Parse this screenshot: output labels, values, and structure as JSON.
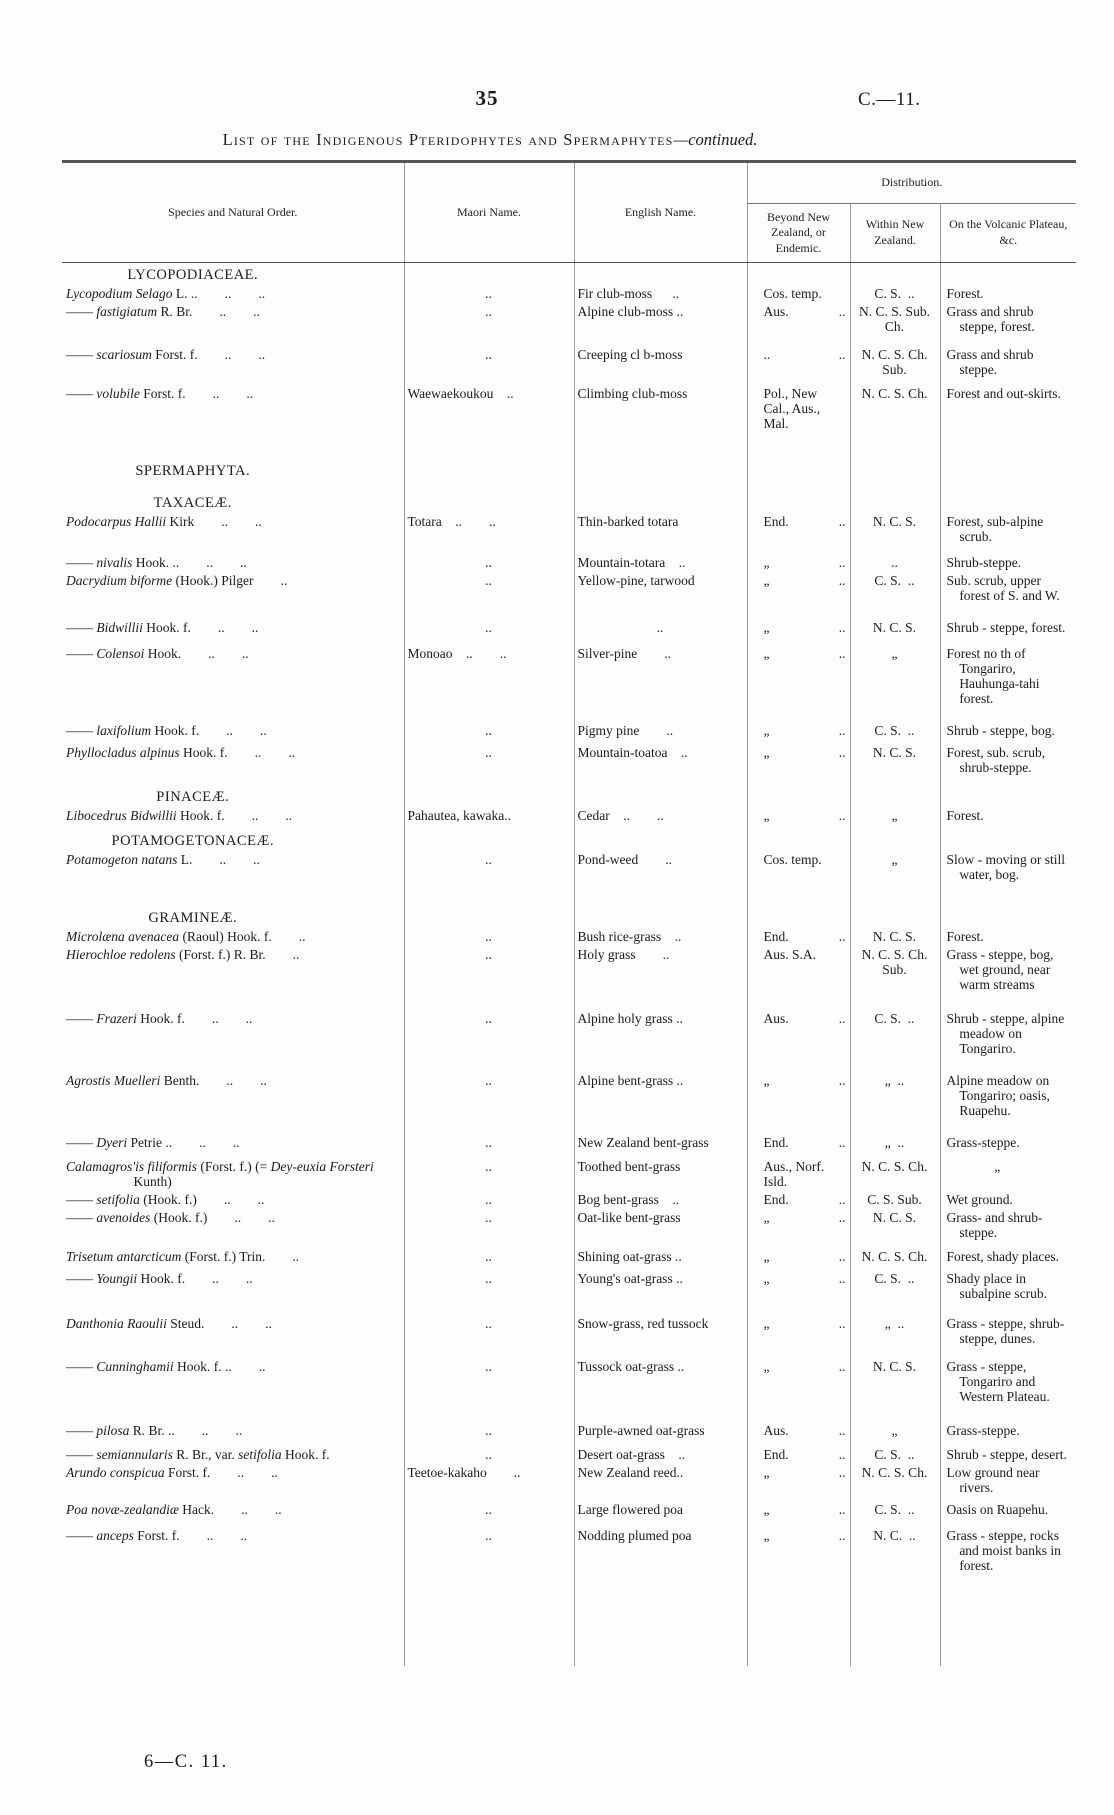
{
  "page": {
    "number": "35",
    "doc_ref": "C.—11.",
    "title_main": "List of the Indigenous Pteridophytes and Spermaphytes",
    "title_suffix": "—continued.",
    "footer": "6—C. 11."
  },
  "table": {
    "headers": {
      "species": "Species and Natural Order.",
      "maori": "Maori Name.",
      "english": "English Name.",
      "distribution": "Distribution.",
      "beyond": "Beyond New Zealand, or Endemic.",
      "within": "Within New Zealand.",
      "volcanic": "On the Volcanic Plateau, &c."
    },
    "rows": [
      {
        "type": "section",
        "label": "LYCOPODIACEAE.",
        "gap": 4
      },
      {
        "type": "sp",
        "seg": [
          {
            "t": "Lycopodium Selago",
            "i": 1
          },
          {
            "t": "L. ..",
            "i": 0
          }
        ],
        "lead": 2,
        "maori": "..",
        "english": "Fir club-moss  ..",
        "beyond": "Cos. temp.",
        "bdots": "",
        "within": "C. S. ..",
        "volcanic": "Forest."
      },
      {
        "type": "sp",
        "seg": [
          {
            "t": "——",
            "i": 0
          },
          {
            "t": "fastigiatum",
            "i": 1
          },
          {
            "t": "R. Br.",
            "i": 0
          }
        ],
        "lead": 2,
        "maori": "..",
        "english": "Alpine club-moss ..",
        "beyond": "Aus.",
        "bdots": "..",
        "within": "N. C. S. Sub. Ch.",
        "volcanic": "Grass and shrub steppe, forest."
      },
      {
        "type": "sp",
        "gap": 10,
        "seg": [
          {
            "t": "——",
            "i": 0
          },
          {
            "t": "scariosum",
            "i": 1
          },
          {
            "t": "Forst. f.",
            "i": 0
          }
        ],
        "lead": 2,
        "maori": "..",
        "english": "Creeping cl b-moss",
        "beyond": "..",
        "bdots": "..",
        "within": "N. C. S. Ch. Sub.",
        "volcanic": "Grass and shrub steppe."
      },
      {
        "type": "sp",
        "gap": 6,
        "seg": [
          {
            "t": "——",
            "i": 0
          },
          {
            "t": "volubile",
            "i": 1
          },
          {
            "t": "Forst. f.",
            "i": 0
          }
        ],
        "lead": 2,
        "maori": "Waewaekoukou ..",
        "english": "Climbing club-moss",
        "beyond": "Pol., New Cal., Aus., Mal.",
        "bdots": "",
        "within": "N. C. S. Ch.",
        "volcanic": "Forest and out-skirts."
      },
      {
        "type": "section",
        "label": "SPERMAPHYTA.",
        "gap": 30
      },
      {
        "type": "section",
        "label": "TAXACEÆ.",
        "gap": 14
      },
      {
        "type": "sp",
        "seg": [
          {
            "t": "Podocarpus Hallii",
            "i": 1
          },
          {
            "t": "Kirk",
            "i": 0
          }
        ],
        "lead": 2,
        "maori": "Totara ..  ..",
        "english": "Thin-barked totara",
        "beyond": "End.",
        "bdots": "..",
        "within": "N. C. S.",
        "volcanic": "Forest, sub-alpine scrub."
      },
      {
        "type": "sp",
        "gap": 8,
        "seg": [
          {
            "t": "——",
            "i": 0
          },
          {
            "t": "nivalis",
            "i": 1
          },
          {
            "t": "Hook. ..",
            "i": 0
          }
        ],
        "lead": 2,
        "maori": "..",
        "english": "Mountain-totara ..",
        "beyond": "„",
        "bdots": "..",
        "within": "..",
        "volcanic": "Shrub-steppe."
      },
      {
        "type": "sp",
        "seg": [
          {
            "t": "Dacrydium biforme",
            "i": 1
          },
          {
            "t": "(Hook.) Pilger",
            "i": 0
          }
        ],
        "lead": 1,
        "maori": "..",
        "english": "Yellow-pine, tarwood",
        "beyond": "„",
        "bdots": "..",
        "within": "C. S. ..",
        "volcanic": "Sub. scrub, upper forest of S. and W."
      },
      {
        "type": "sp",
        "gap": 14,
        "seg": [
          {
            "t": "——",
            "i": 0
          },
          {
            "t": "Bidwillii",
            "i": 1
          },
          {
            "t": "Hook. f.",
            "i": 0
          }
        ],
        "lead": 2,
        "maori": "..",
        "english": "..",
        "beyond": "„",
        "bdots": "..",
        "within": "N. C. S.",
        "volcanic": "Shrub - steppe, forest."
      },
      {
        "type": "sp",
        "gap": 8,
        "seg": [
          {
            "t": "——",
            "i": 0
          },
          {
            "t": "Colensoi",
            "i": 1
          },
          {
            "t": "Hook.",
            "i": 0
          }
        ],
        "lead": 2,
        "maori": "Monoao ..  ..",
        "english": "Silver-pine  ..",
        "beyond": "„",
        "bdots": "..",
        "within": "„",
        "volcanic": "Forest no th of Tongariro, Hauhunga-tahi forest."
      },
      {
        "type": "sp",
        "gap": 14,
        "seg": [
          {
            "t": "——",
            "i": 0
          },
          {
            "t": "laxifolium",
            "i": 1
          },
          {
            "t": "Hook. f.",
            "i": 0
          }
        ],
        "lead": 2,
        "maori": "..",
        "english": "Pigmy pine  ..",
        "beyond": "„",
        "bdots": "..",
        "within": "C. S. ..",
        "volcanic": "Shrub - steppe, bog."
      },
      {
        "type": "sp",
        "gap": 4,
        "seg": [
          {
            "t": "Phyllocladus alpinus",
            "i": 1
          },
          {
            "t": "Hook. f.",
            "i": 0
          }
        ],
        "lead": 2,
        "maori": "..",
        "english": "Mountain-toatoa ..",
        "beyond": "„",
        "bdots": "..",
        "within": "N. C. S.",
        "volcanic": "Forest, sub. scrub, shrub-steppe."
      },
      {
        "type": "section",
        "label": "PINACEÆ.",
        "gap": 12
      },
      {
        "type": "sp",
        "seg": [
          {
            "t": "Libocedrus Bidwillii",
            "i": 1
          },
          {
            "t": "Hook. f.",
            "i": 0
          }
        ],
        "lead": 2,
        "maori": "Pahautea, kawaka..",
        "english": "Cedar ..  ..",
        "beyond": "„",
        "bdots": "..",
        "within": "„",
        "volcanic": "Forest."
      },
      {
        "type": "section",
        "label": "POTAMOGETONACEÆ.",
        "gap": 8
      },
      {
        "type": "sp",
        "seg": [
          {
            "t": "Potamogeton natans",
            "i": 1
          },
          {
            "t": "L.",
            "i": 0
          }
        ],
        "lead": 2,
        "maori": "..",
        "english": "Pond-weed  ..",
        "beyond": "Cos. temp.",
        "bdots": "",
        "within": "„",
        "volcanic": "Slow - moving or still water, bog."
      },
      {
        "type": "section",
        "label": "GRAMINEÆ.",
        "gap": 26
      },
      {
        "type": "sp",
        "seg": [
          {
            "t": "Microlæna avenacea",
            "i": 1
          },
          {
            "t": "(Raoul) Hook. f.",
            "i": 0
          }
        ],
        "lead": 1,
        "maori": "..",
        "english": "Bush rice-grass ..",
        "beyond": "End.",
        "bdots": "..",
        "within": "N. C. S.",
        "volcanic": "Forest."
      },
      {
        "type": "sp",
        "seg": [
          {
            "t": "Hierochloe redolens",
            "i": 1
          },
          {
            "t": "(Forst. f.) R. Br.",
            "i": 0
          }
        ],
        "lead": 1,
        "maori": "..",
        "english": "Holy grass  ..",
        "beyond": "Aus. S.A.",
        "bdots": "",
        "within": "N. C. S. Ch. Sub.",
        "volcanic": "Grass - steppe, bog, wet ground, near warm streams"
      },
      {
        "type": "sp",
        "gap": 16,
        "seg": [
          {
            "t": "——",
            "i": 0
          },
          {
            "t": "Frazeri",
            "i": 1
          },
          {
            "t": "Hook. f.",
            "i": 0
          }
        ],
        "lead": 2,
        "maori": "..",
        "english": "Alpine holy grass ..",
        "beyond": "Aus.",
        "bdots": "..",
        "within": "C. S. ..",
        "volcanic": "Shrub - steppe, alpine meadow on Tongariro."
      },
      {
        "type": "sp",
        "gap": 14,
        "seg": [
          {
            "t": "Agrostis Muelleri",
            "i": 1
          },
          {
            "t": "Benth.",
            "i": 0
          }
        ],
        "lead": 2,
        "maori": "..",
        "english": "Alpine bent-grass ..",
        "beyond": "„",
        "bdots": "..",
        "within": "„ ..",
        "volcanic": "Alpine meadow on Tongariro; oasis, Ruapehu."
      },
      {
        "type": "sp",
        "gap": 14,
        "seg": [
          {
            "t": "——",
            "i": 0
          },
          {
            "t": "Dyeri",
            "i": 1
          },
          {
            "t": "Petrie ..",
            "i": 0
          }
        ],
        "lead": 2,
        "maori": "..",
        "english": "New Zealand bent-grass",
        "beyond": "End.",
        "bdots": "..",
        "within": "„ ..",
        "volcanic": "Grass-steppe."
      },
      {
        "type": "sp",
        "gap": 6,
        "seg": [
          {
            "t": "Calamagros'is filiformis",
            "i": 1
          },
          {
            "t": "(Forst. f.) (=",
            "i": 0
          },
          {
            "t": "Dey-euxia Forsteri",
            "i": 1
          },
          {
            "t": "Kunth)",
            "i": 0
          }
        ],
        "lead": 0,
        "maori": "..",
        "english": "Toothed bent-grass",
        "beyond": "Aus., Norf. Isld.",
        "bdots": "",
        "within": "N. C. S. Ch.",
        "volcanic": "„"
      },
      {
        "type": "sp",
        "seg": [
          {
            "t": "——",
            "i": 0
          },
          {
            "t": "setifolia",
            "i": 1
          },
          {
            "t": "(Hook. f.)",
            "i": 0
          }
        ],
        "lead": 2,
        "maori": "..",
        "english": "Bog bent-grass ..",
        "beyond": "End.",
        "bdots": "..",
        "within": "C. S. Sub.",
        "volcanic": "Wet ground."
      },
      {
        "type": "sp",
        "seg": [
          {
            "t": "——",
            "i": 0
          },
          {
            "t": "avenoides",
            "i": 1
          },
          {
            "t": "(Hook. f.)",
            "i": 0
          }
        ],
        "lead": 2,
        "maori": "..",
        "english": "Oat-like bent-grass",
        "beyond": "„",
        "bdots": "..",
        "within": "N. C. S.",
        "volcanic": "Grass- and shrub-steppe."
      },
      {
        "type": "sp",
        "gap": 6,
        "seg": [
          {
            "t": "Trisetum antarcticum",
            "i": 1
          },
          {
            "t": "(Forst. f.) Trin.",
            "i": 0
          }
        ],
        "lead": 1,
        "maori": "..",
        "english": "Shining oat-grass ..",
        "beyond": "„",
        "bdots": "..",
        "within": "N. C. S. Ch.",
        "volcanic": "Forest, shady places."
      },
      {
        "type": "sp",
        "gap": 4,
        "seg": [
          {
            "t": "——",
            "i": 0
          },
          {
            "t": "Youngii",
            "i": 1
          },
          {
            "t": "Hook. f.",
            "i": 0
          }
        ],
        "lead": 2,
        "maori": "..",
        "english": "Young's oat-grass ..",
        "beyond": "„",
        "bdots": "..",
        "within": "C. S. ..",
        "volcanic": "Shady place in subalpine scrub."
      },
      {
        "type": "sp",
        "gap": 12,
        "seg": [
          {
            "t": "Danthonia Raoulii",
            "i": 1
          },
          {
            "t": "Steud.",
            "i": 0
          }
        ],
        "lead": 2,
        "maori": "..",
        "english": "Snow-grass, red tussock",
        "beyond": "„",
        "bdots": "..",
        "within": "„ ..",
        "volcanic": "Grass - steppe, shrub-steppe, dunes."
      },
      {
        "type": "sp",
        "gap": 10,
        "seg": [
          {
            "t": "——",
            "i": 0
          },
          {
            "t": "Cunninghamii",
            "i": 1
          },
          {
            "t": "Hook. f. ..",
            "i": 0
          }
        ],
        "lead": 1,
        "maori": "..",
        "english": "Tussock oat-grass ..",
        "beyond": "„",
        "bdots": "..",
        "within": "N. C. S.",
        "volcanic": "Grass - steppe, Tongariro and Western Plateau."
      },
      {
        "type": "sp",
        "gap": 16,
        "seg": [
          {
            "t": "——",
            "i": 0
          },
          {
            "t": "pilosa",
            "i": 1
          },
          {
            "t": "R. Br. ..",
            "i": 0
          }
        ],
        "lead": 2,
        "maori": "..",
        "english": "Purple-awned oat-grass",
        "beyond": "Aus.",
        "bdots": "..",
        "within": "„",
        "volcanic": "Grass-steppe."
      },
      {
        "type": "sp",
        "gap": 6,
        "seg": [
          {
            "t": "——",
            "i": 0
          },
          {
            "t": "semiannularis",
            "i": 1
          },
          {
            "t": "R. Br., var.",
            "i": 0
          },
          {
            "t": "setifolia",
            "i": 1
          },
          {
            "t": "Hook. f.",
            "i": 0
          }
        ],
        "lead": 0,
        "maori": "..",
        "english": "Desert oat-grass ..",
        "beyond": "End.",
        "bdots": "..",
        "within": "C. S. ..",
        "volcanic": "Shrub - steppe, desert."
      },
      {
        "type": "sp",
        "seg": [
          {
            "t": "Arundo conspicua",
            "i": 1
          },
          {
            "t": "Forst. f.",
            "i": 0
          }
        ],
        "lead": 2,
        "maori": "Teetoe-kakaho  ..",
        "english": "New Zealand reed..",
        "beyond": "„",
        "bdots": "..",
        "within": "N. C. S. Ch.",
        "volcanic": "Low ground near rivers."
      },
      {
        "type": "sp",
        "gap": 4,
        "seg": [
          {
            "t": "Poa novæ-zealandiæ",
            "i": 1
          },
          {
            "t": "Hack.",
            "i": 0
          }
        ],
        "lead": 2,
        "maori": "..",
        "english": "Large flowered poa",
        "beyond": "„",
        "bdots": "..",
        "within": "C. S. ..",
        "volcanic": "Oasis on Ruapehu."
      },
      {
        "type": "sp",
        "gap": 8,
        "seg": [
          {
            "t": "——",
            "i": 0
          },
          {
            "t": "anceps",
            "i": 1
          },
          {
            "t": "Forst. f.",
            "i": 0
          }
        ],
        "lead": 2,
        "maori": "..",
        "english": "Nodding plumed poa",
        "beyond": "„",
        "bdots": "..",
        "within": "N. C. ..",
        "volcanic": "Grass - steppe, rocks and moist banks in forest."
      }
    ]
  }
}
